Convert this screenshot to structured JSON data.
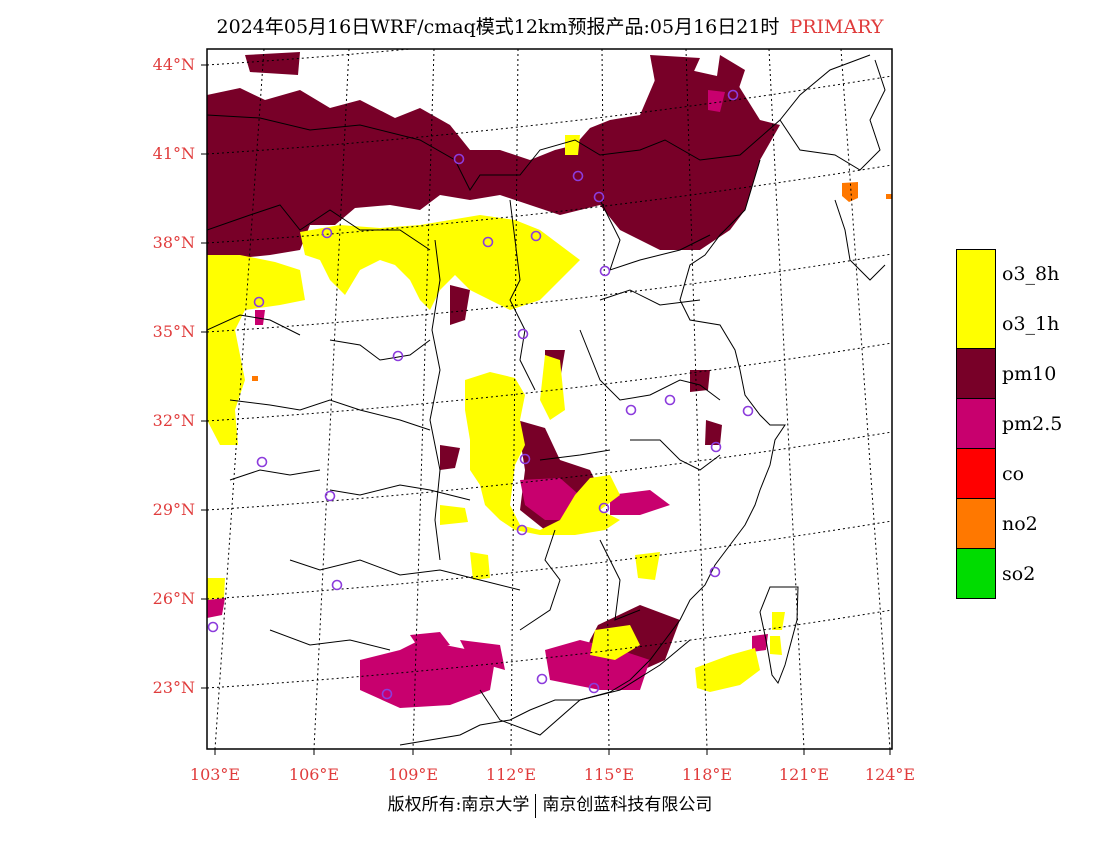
{
  "header": {
    "title": "2024年05月16日WRF/cmaq模式12km预报产品:05月16日21时",
    "tag": "PRIMARY"
  },
  "map": {
    "lat_ticks": [
      {
        "label": "44°N"
      },
      {
        "label": "41°N"
      },
      {
        "label": "38°N"
      },
      {
        "label": "35°N"
      },
      {
        "label": "32°N"
      },
      {
        "label": "29°N"
      },
      {
        "label": "26°N"
      },
      {
        "label": "23°N"
      }
    ],
    "lon_ticks": [
      {
        "label": "103°E"
      },
      {
        "label": "106°E"
      },
      {
        "label": "109°E"
      },
      {
        "label": "112°E"
      },
      {
        "label": "115°E"
      },
      {
        "label": "118°E"
      },
      {
        "label": "121°E"
      },
      {
        "label": "124°E"
      }
    ],
    "colors": {
      "o3": "#ffff00",
      "pm10": "#780028",
      "pm25": "#c8006e",
      "co": "#ff0000",
      "no2": "#ff7800",
      "so2": "#00dc00",
      "station": "#8c3cdc"
    }
  },
  "legend": {
    "items": [
      {
        "label": "o3_8h",
        "color": "#ffff00"
      },
      {
        "label": "o3_1h",
        "color": "#ffff00"
      },
      {
        "label": "pm10",
        "color": "#780028"
      },
      {
        "label": "pm2.5",
        "color": "#c8006e"
      },
      {
        "label": "co",
        "color": "#ff0000"
      },
      {
        "label": "no2",
        "color": "#ff7800"
      },
      {
        "label": "so2",
        "color": "#00dc00"
      }
    ]
  },
  "footer": {
    "left": "版权所有:南京大学",
    "right": "南京创蓝科技有限公司"
  }
}
